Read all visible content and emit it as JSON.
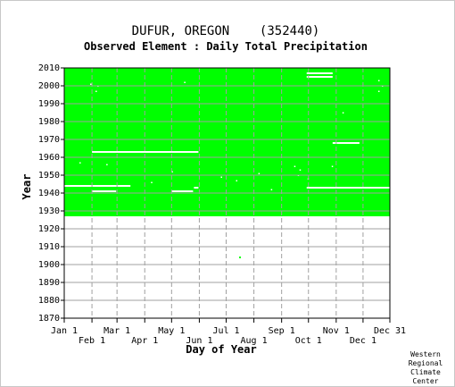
{
  "chart_data": {
    "type": "heatmap",
    "title": "DUFUR, OREGON    (352440)",
    "subtitle": "Observed Element : Daily Total Precipitation",
    "xlabel": "Day of Year",
    "ylabel": "Year",
    "credit": [
      "Western",
      "Regional",
      "Climate",
      "Center"
    ],
    "x_range_day": [
      1,
      365
    ],
    "ylim": [
      1870,
      2010
    ],
    "yticks": [
      1870,
      1880,
      1890,
      1900,
      1910,
      1920,
      1930,
      1940,
      1950,
      1960,
      1970,
      1980,
      1990,
      2000,
      2010
    ],
    "xticks_upper": [
      {
        "label": "Jan 1",
        "day": 1
      },
      {
        "label": "Mar 1",
        "day": 60
      },
      {
        "label": "May 1",
        "day": 121
      },
      {
        "label": "Jul 1",
        "day": 182
      },
      {
        "label": "Sep 1",
        "day": 244
      },
      {
        "label": "Nov 1",
        "day": 305
      },
      {
        "label": "Dec 31",
        "day": 365
      }
    ],
    "xticks_lower": [
      {
        "label": "Feb 1",
        "day": 32
      },
      {
        "label": "Apr 1",
        "day": 91
      },
      {
        "label": "Jun 1",
        "day": 152
      },
      {
        "label": "Aug 1",
        "day": 213
      },
      {
        "label": "Oct 1",
        "day": 274
      },
      {
        "label": "Dec 1",
        "day": 335
      }
    ],
    "grid": true,
    "colors": {
      "observed": "#00ff00",
      "missing": "#ffffff",
      "grid": "#a0a0a0"
    },
    "observed_years": [
      1927,
      2010
    ],
    "isolated_observed_points": [
      {
        "year": 1904,
        "day": 197
      }
    ],
    "missing_segments": [
      {
        "year": 2007,
        "day_start": 272,
        "day_end": 301
      },
      {
        "year": 2005,
        "day_start": 272,
        "day_end": 301
      },
      {
        "year": 1968,
        "day_start": 301,
        "day_end": 331
      },
      {
        "year": 1963,
        "day_start": 32,
        "day_end": 151
      },
      {
        "year": 1944,
        "day_start": 1,
        "day_end": 75
      },
      {
        "year": 1943,
        "day_start": 272,
        "day_end": 365
      },
      {
        "year": 1941,
        "day_start": 32,
        "day_end": 59
      },
      {
        "year": 1943,
        "day_start": 146,
        "day_end": 151
      },
      {
        "year": 1941,
        "day_start": 121,
        "day_end": 145
      }
    ],
    "missing_days_scattered": [
      {
        "year": 2001,
        "day": 30
      },
      {
        "year": 2000,
        "day": 38
      },
      {
        "year": 1997,
        "day": 36
      },
      {
        "year": 2002,
        "day": 135
      },
      {
        "year": 2003,
        "day": 352
      },
      {
        "year": 2000,
        "day": 356
      },
      {
        "year": 1997,
        "day": 352
      },
      {
        "year": 1985,
        "day": 312
      },
      {
        "year": 1956,
        "day": 48
      },
      {
        "year": 1955,
        "day": 258
      },
      {
        "year": 1953,
        "day": 264
      },
      {
        "year": 1950,
        "day": 262
      },
      {
        "year": 1955,
        "day": 300
      },
      {
        "year": 1949,
        "day": 176
      },
      {
        "year": 1947,
        "day": 193
      },
      {
        "year": 1951,
        "day": 218
      },
      {
        "year": 1942,
        "day": 232
      },
      {
        "year": 1946,
        "day": 98
      },
      {
        "year": 1952,
        "day": 121
      },
      {
        "year": 1948,
        "day": 273
      },
      {
        "year": 1957,
        "day": 18
      }
    ]
  }
}
